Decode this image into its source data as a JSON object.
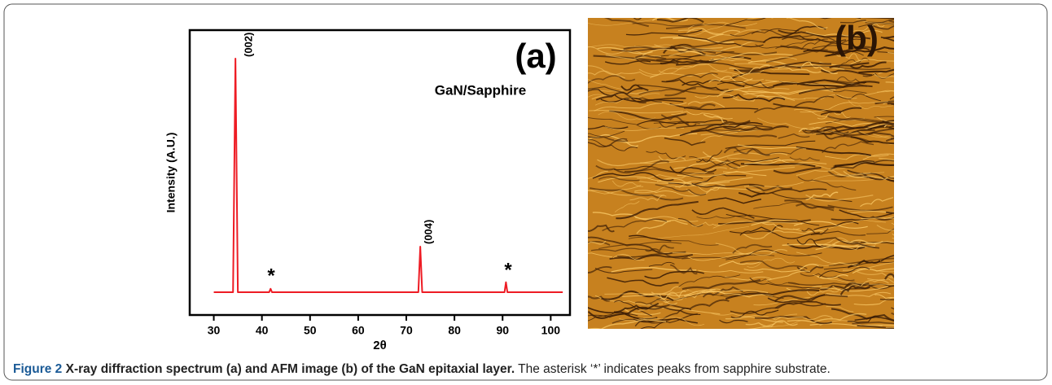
{
  "chart_data": {
    "type": "line",
    "x_label": "2θ",
    "y_label": "Intensity (A.U.)",
    "panel_label": "(a)",
    "legend_text": "GaN/Sapphire",
    "annotations": [
      "(002)",
      "(004)",
      "*",
      "*"
    ],
    "xlim": [
      25,
      104
    ],
    "ylim": [
      0,
      100
    ],
    "xticks": [
      30,
      40,
      50,
      60,
      70,
      80,
      90,
      100
    ],
    "series": [
      {
        "color": "#ee1c24",
        "x": [
          30,
          34,
          34.5,
          35,
          41.5,
          41.8,
          42.1,
          72.5,
          72.9,
          73.3,
          90.4,
          90.7,
          91,
          102.5
        ],
        "values": [
          8,
          8,
          90,
          8,
          8,
          9.2,
          8,
          8,
          24,
          8,
          8,
          11.5,
          8,
          8
        ]
      }
    ]
  },
  "panel_b": {
    "label": "(b)"
  },
  "caption": {
    "label": "Figure 2",
    "title": "X-ray diffraction spectrum (a) and AFM image (b) of the GaN epitaxial layer.",
    "text": "The asterisk ‘*’ indicates peaks from sapphire substrate."
  }
}
